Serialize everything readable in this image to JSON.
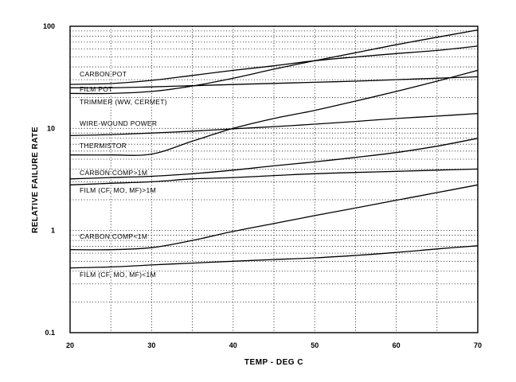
{
  "chart_data": {
    "type": "line",
    "title": "",
    "xlabel": "TEMP - DEG C",
    "ylabel": "RELATIVE FAILURE RATE",
    "xlim": [
      20,
      70
    ],
    "ylim": [
      0.1,
      100
    ],
    "yscale": "log",
    "grid": true,
    "x_ticks": [
      "20",
      "30",
      "40",
      "50",
      "60",
      "70"
    ],
    "y_ticks": [
      "0.1",
      "1",
      "10",
      "100"
    ],
    "x": [
      20,
      25,
      30,
      35,
      40,
      45,
      50,
      55,
      60,
      65,
      70
    ],
    "series": [
      {
        "name": "CARBON POT",
        "values": [
          27,
          27.5,
          29.5,
          33,
          37,
          41,
          46,
          50,
          54,
          58,
          64
        ]
      },
      {
        "name": "FILM POT",
        "values": [
          22,
          22,
          23,
          26,
          31,
          38,
          46,
          55,
          66,
          78,
          92
        ]
      },
      {
        "name": "TRIMMER (WW, CERMET)",
        "values": [
          25,
          25,
          25.5,
          26.2,
          26.9,
          27.6,
          28.3,
          29,
          30,
          31,
          32
        ]
      },
      {
        "name": "WIRE-WOUND POWER",
        "values": [
          8.5,
          8.7,
          9,
          9.4,
          9.9,
          10.4,
          11,
          11.7,
          12.5,
          13.2,
          14
        ]
      },
      {
        "name": "THERMISTOR",
        "values": [
          5.5,
          5.5,
          5.6,
          7.5,
          10,
          12.5,
          15,
          18.5,
          23,
          29,
          37
        ]
      },
      {
        "name": "CARBON COMP>1M",
        "values": [
          3.2,
          3.3,
          3.4,
          3.6,
          3.9,
          4.3,
          4.7,
          5.2,
          5.8,
          6.7,
          8
        ]
      },
      {
        "name": "FILM (CF, MO, MF)>1M",
        "values": [
          2.8,
          2.9,
          3.0,
          3.2,
          3.3,
          3.45,
          3.6,
          3.7,
          3.8,
          3.9,
          4.0
        ]
      },
      {
        "name": "CARBON COMP<1M",
        "values": [
          0.65,
          0.65,
          0.68,
          0.8,
          0.98,
          1.17,
          1.4,
          1.66,
          1.98,
          2.35,
          2.8
        ]
      },
      {
        "name": "FILM (CF, MO, MF)<1M",
        "values": [
          0.43,
          0.44,
          0.46,
          0.48,
          0.5,
          0.52,
          0.54,
          0.57,
          0.61,
          0.66,
          0.71
        ]
      }
    ]
  }
}
